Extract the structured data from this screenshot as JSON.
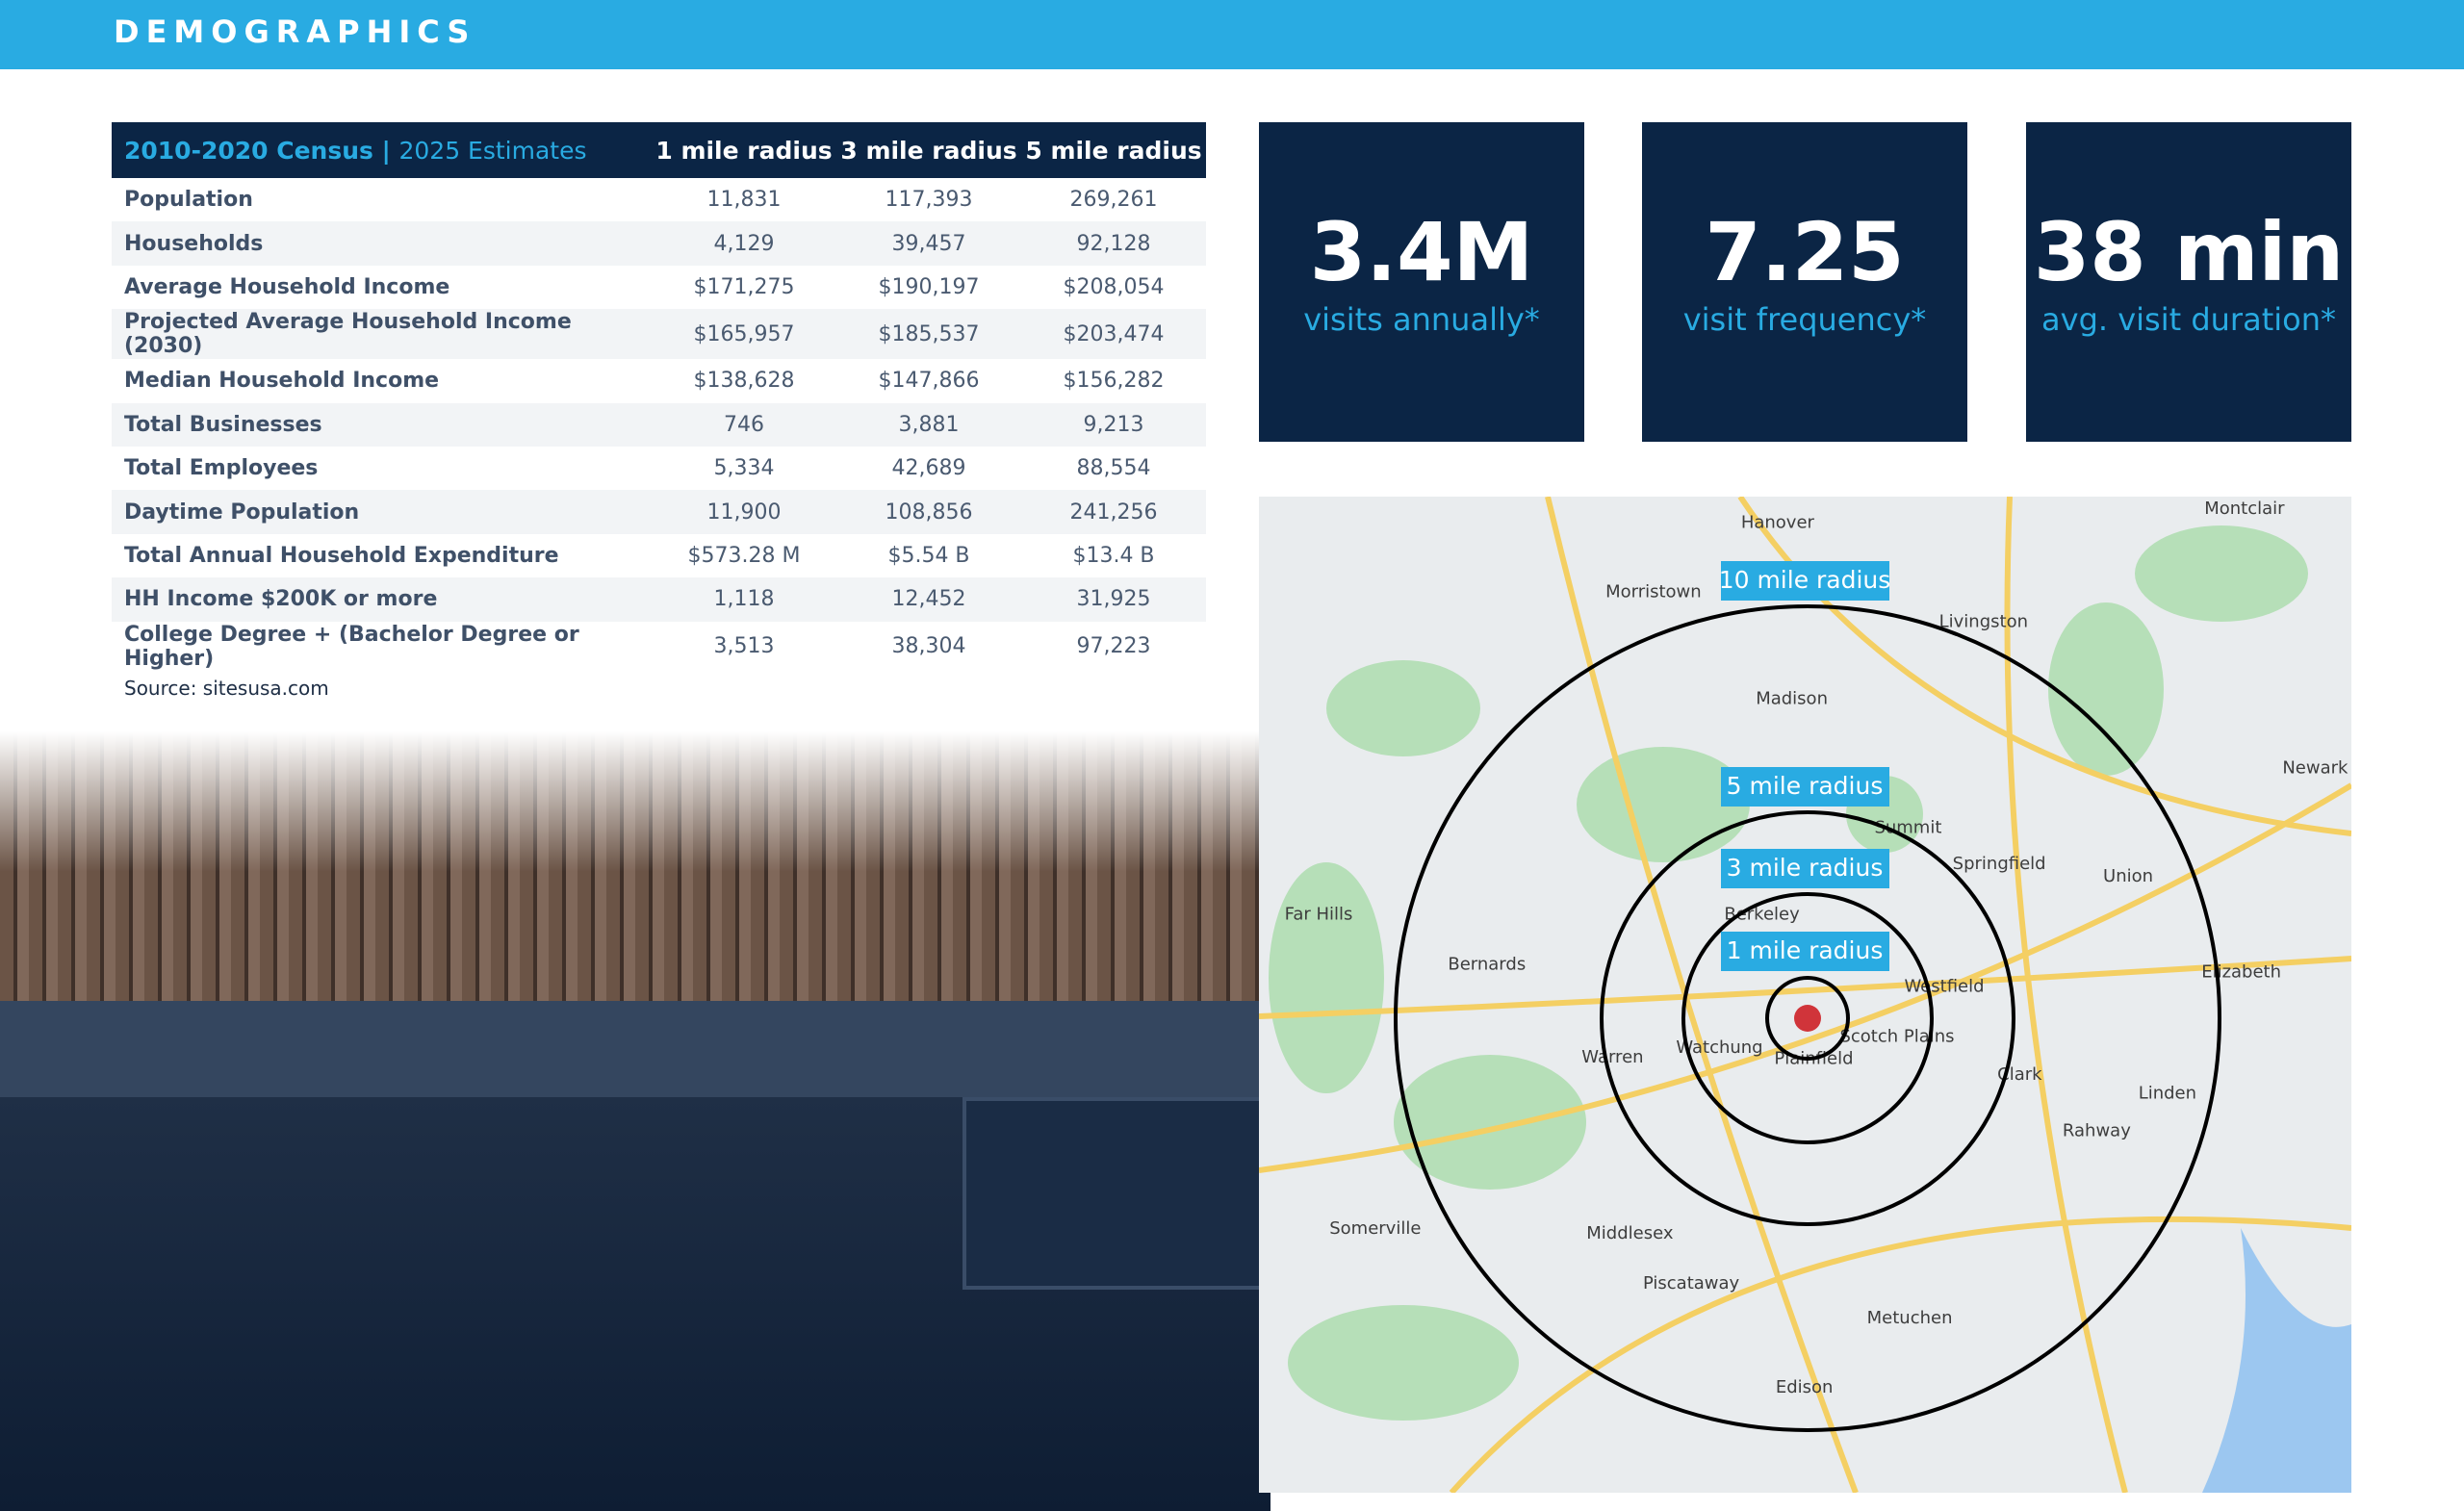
{
  "header": {
    "title": "DEMOGRAPHICS"
  },
  "table": {
    "header": {
      "title": "2010-2020 Census",
      "separator": "|",
      "subtitle": "2025 Estimates",
      "columns": [
        "1 mile radius",
        "3 mile radius",
        "5 mile radius"
      ]
    },
    "rows": [
      [
        "Population",
        "11,831",
        "117,393",
        "269,261"
      ],
      [
        "Households",
        "4,129",
        "39,457",
        "92,128"
      ],
      [
        "Average Household Income",
        "$171,275",
        "$190,197",
        "$208,054"
      ],
      [
        "Projected Average Household Income (2030)",
        "$165,957",
        "$185,537",
        "$203,474"
      ],
      [
        "Median Household Income",
        "$138,628",
        "$147,866",
        "$156,282"
      ],
      [
        "Total Businesses",
        "746",
        "3,881",
        "9,213"
      ],
      [
        "Total Employees",
        "5,334",
        "42,689",
        "88,554"
      ],
      [
        "Daytime Population",
        "11,900",
        "108,856",
        "241,256"
      ],
      [
        "Total Annual Household Expenditure",
        "$573.28 M",
        "$5.54 B",
        "$13.4 B"
      ],
      [
        "HH Income $200K or more",
        "1,118",
        "12,452",
        "31,925"
      ],
      [
        "College Degree + (Bachelor Degree or Higher)",
        "3,513",
        "38,304",
        "97,223"
      ]
    ],
    "source": "Source: sitesusa.com"
  },
  "stats": [
    {
      "value": "3.4M",
      "label": "visits annually*"
    },
    {
      "value": "7.25",
      "label": "visit frequency*"
    },
    {
      "value": "38 min",
      "label": "avg. visit duration*"
    }
  ],
  "map": {
    "radius_labels": [
      "10 mile radius",
      "5 mile radius",
      "3 mile radius",
      "1 mile radius"
    ],
    "places": [
      "Morristown",
      "Madison",
      "Summit",
      "Westfield",
      "Plainfield",
      "Scotch Plains",
      "Edison",
      "Piscataway",
      "Bernards",
      "Warren",
      "Linden",
      "Elizabeth",
      "Rahway",
      "Springfield",
      "Union",
      "Newark",
      "Livingston",
      "Hanover",
      "Montclair",
      "Somerville",
      "Middlesex",
      "Metuchen",
      "Berkeley",
      "Watchung",
      "Clark",
      "Far Hills"
    ]
  }
}
